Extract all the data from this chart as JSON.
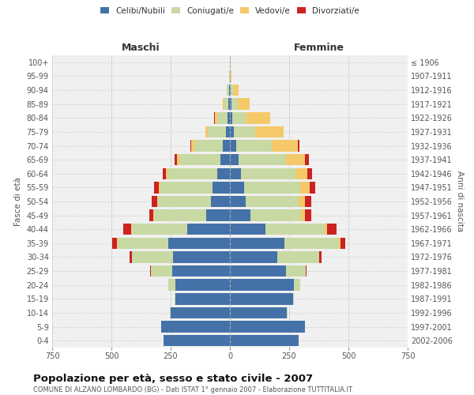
{
  "age_groups": [
    "0-4",
    "5-9",
    "10-14",
    "15-19",
    "20-24",
    "25-29",
    "30-34",
    "35-39",
    "40-44",
    "45-49",
    "50-54",
    "55-59",
    "60-64",
    "65-69",
    "70-74",
    "75-79",
    "80-84",
    "85-89",
    "90-94",
    "95-99",
    "100+"
  ],
  "birth_years": [
    "2002-2006",
    "1997-2001",
    "1992-1996",
    "1987-1991",
    "1982-1986",
    "1977-1981",
    "1972-1976",
    "1967-1971",
    "1962-1966",
    "1957-1961",
    "1952-1956",
    "1947-1951",
    "1942-1946",
    "1937-1941",
    "1932-1936",
    "1927-1931",
    "1922-1926",
    "1917-1921",
    "1912-1916",
    "1907-1911",
    "≤ 1906"
  ],
  "maschi": {
    "celibe": [
      280,
      290,
      250,
      230,
      230,
      245,
      240,
      260,
      180,
      100,
      80,
      75,
      55,
      40,
      30,
      18,
      10,
      6,
      4,
      1,
      1
    ],
    "coniugato": [
      0,
      1,
      2,
      5,
      30,
      90,
      175,
      215,
      235,
      220,
      225,
      220,
      210,
      175,
      120,
      75,
      45,
      18,
      8,
      1,
      0
    ],
    "vedovo": [
      0,
      0,
      0,
      0,
      0,
      0,
      0,
      1,
      1,
      2,
      3,
      5,
      5,
      8,
      12,
      10,
      10,
      5,
      2,
      0,
      0
    ],
    "divorziato": [
      0,
      0,
      0,
      0,
      0,
      2,
      8,
      20,
      35,
      18,
      22,
      20,
      15,
      12,
      5,
      2,
      1,
      0,
      0,
      0,
      0
    ]
  },
  "femmine": {
    "nubile": [
      290,
      315,
      240,
      265,
      270,
      235,
      200,
      230,
      150,
      85,
      65,
      60,
      45,
      35,
      25,
      15,
      10,
      8,
      4,
      1,
      1
    ],
    "coniugata": [
      0,
      1,
      2,
      5,
      25,
      85,
      175,
      230,
      250,
      215,
      225,
      235,
      230,
      200,
      150,
      90,
      60,
      25,
      12,
      2,
      0
    ],
    "vedova": [
      0,
      0,
      0,
      0,
      0,
      1,
      2,
      5,
      10,
      15,
      25,
      40,
      50,
      80,
      110,
      120,
      100,
      50,
      20,
      3,
      1
    ],
    "divorziata": [
      0,
      0,
      0,
      0,
      1,
      3,
      8,
      22,
      40,
      28,
      28,
      25,
      20,
      18,
      8,
      3,
      1,
      0,
      0,
      0,
      0
    ]
  },
  "colors": {
    "celibe": "#4472a8",
    "coniugato": "#c8d9a4",
    "vedovo": "#f5c96a",
    "divorziato": "#cc2222"
  },
  "xlim": 750,
  "title": "Popolazione per età, sesso e stato civile - 2007",
  "subtitle": "COMUNE DI ALZANO LOMBARDO (BG) - Dati ISTAT 1° gennaio 2007 - Elaborazione TUTTITALIA.IT",
  "ylabel_left": "Fasce di età",
  "ylabel_right": "Anni di nascita",
  "label_maschi": "Maschi",
  "label_femmine": "Femmine",
  "legend_labels": [
    "Celibi/Nubili",
    "Coniugati/e",
    "Vedovi/e",
    "Divorziati/e"
  ],
  "bg_color": "#ffffff",
  "plot_bg": "#f0f0f0"
}
